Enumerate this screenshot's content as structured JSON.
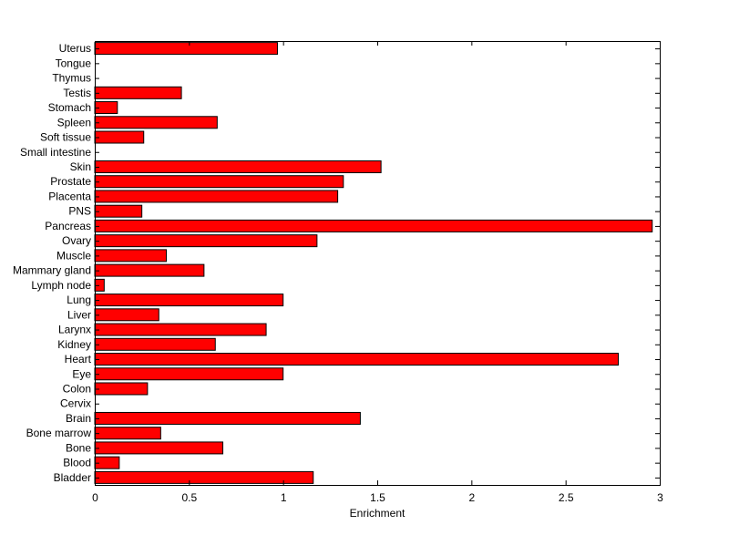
{
  "chart_data": {
    "type": "bar",
    "orientation": "horizontal",
    "title": "",
    "xlabel": "Enrichment",
    "ylabel": "",
    "xlim": [
      0,
      3
    ],
    "xticks": [
      0,
      0.5,
      1,
      1.5,
      2,
      2.5,
      3
    ],
    "xtick_labels": [
      "0",
      "0.5",
      "1",
      "1.5",
      "2",
      "2.5",
      "3"
    ],
    "grid": false,
    "bar_color": "#ff0000",
    "edge_color": "#000000",
    "categories": [
      "Uterus",
      "Tongue",
      "Thymus",
      "Testis",
      "Stomach",
      "Spleen",
      "Soft tissue",
      "Small intestine",
      "Skin",
      "Prostate",
      "Placenta",
      "PNS",
      "Pancreas",
      "Ovary",
      "Muscle",
      "Mammary gland",
      "Lymph node",
      "Lung",
      "Liver",
      "Larynx",
      "Kidney",
      "Heart",
      "Eye",
      "Colon",
      "Cervix",
      "Brain",
      "Bone marrow",
      "Bone",
      "Blood",
      "Bladder"
    ],
    "values": [
      0.97,
      0,
      0,
      0.46,
      0.12,
      0.65,
      0.26,
      0,
      1.52,
      1.32,
      1.29,
      0.25,
      2.96,
      1.18,
      0.38,
      0.58,
      0.05,
      1.0,
      0.34,
      0.91,
      0.64,
      2.78,
      1.0,
      0.28,
      0,
      1.41,
      0.35,
      0.68,
      0.13,
      1.16
    ]
  }
}
